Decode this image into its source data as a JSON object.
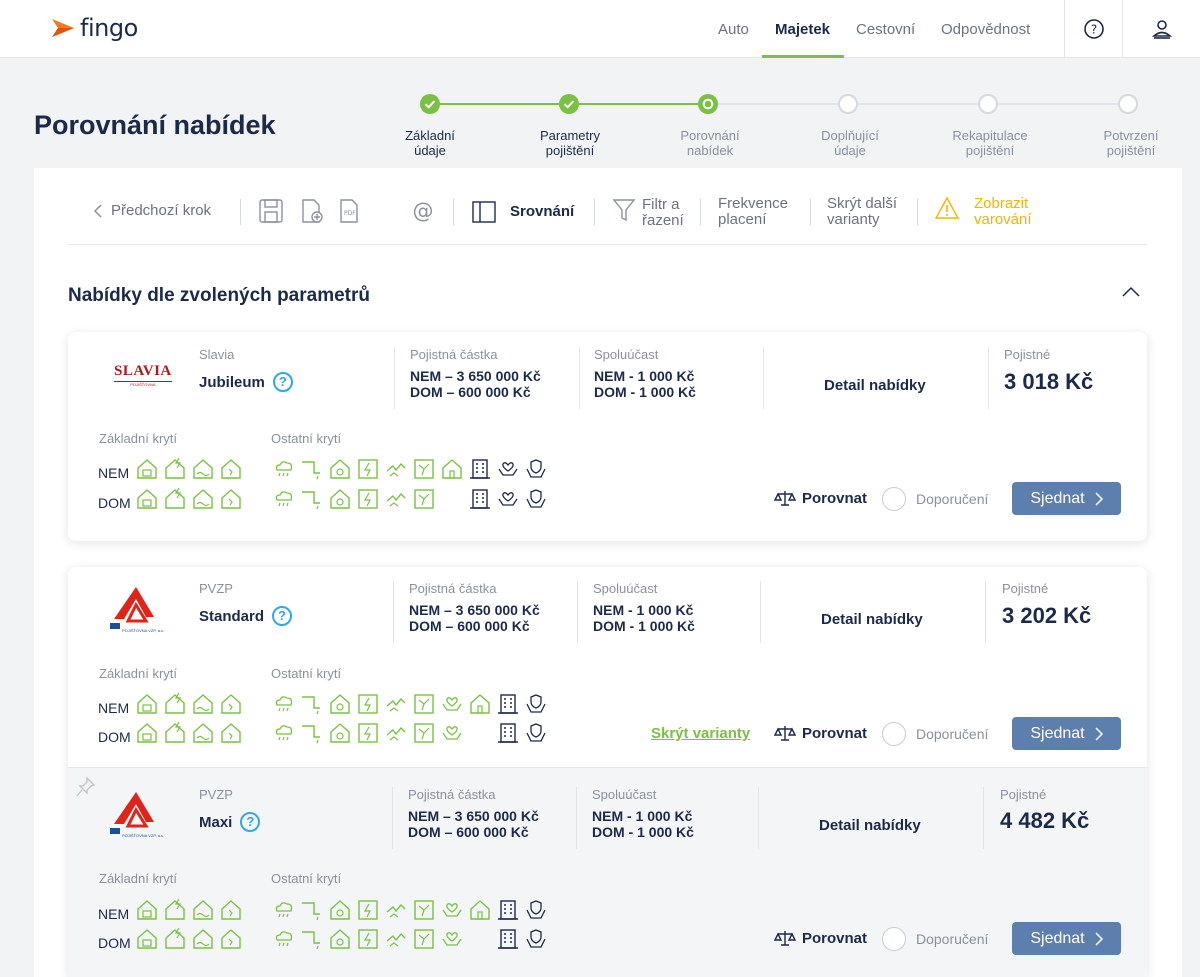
{
  "header": {
    "logo": "fingo",
    "nav": [
      "Auto",
      "Majetek",
      "Cestovní",
      "Odpovědnost"
    ],
    "active_nav": "Majetek"
  },
  "page": {
    "title": "Porovnání nabídek"
  },
  "steps": [
    {
      "label": "Základní údaje",
      "state": "done"
    },
    {
      "label": "Parametry pojištění",
      "state": "done"
    },
    {
      "label": "Porovnání nabídek",
      "state": "current"
    },
    {
      "label": "Doplňující údaje",
      "state": "todo"
    },
    {
      "label": "Rekapitulace pojištění",
      "state": "todo"
    },
    {
      "label": "Potvrzení pojištění",
      "state": "todo"
    }
  ],
  "toolbar": {
    "back": "Předchozí krok",
    "compare": "Srovnání",
    "filter": "Filtr a řazení",
    "frequency": "Frekvence placení",
    "hide_variants": "Skrýt další varianty",
    "warnings": "Zobrazit varování"
  },
  "section_title": "Nabídky dle zvolených parametrů",
  "labels": {
    "sum": "Pojistná částka",
    "deductible": "Spoluúčast",
    "premium": "Pojistné",
    "detail": "Detail nabídky",
    "basic": "Základní krytí",
    "other": "Ostatní krytí",
    "nem": "NEM",
    "dom": "DOM",
    "compare": "Porovnat",
    "recommend": "Doporučení",
    "order": "Sjednat",
    "hide_variants": "Skrýt varianty"
  },
  "offers": [
    {
      "insurer": "Slavia",
      "logo": "SLAVIA",
      "logo_sub": "POJIŠŤOVNA",
      "product": "Jubileum",
      "sum_nem": "NEM – 3 650 000 Kč",
      "sum_dom": "DOM – 600 000 Kč",
      "ded_nem": "NEM - 1 000 Kč",
      "ded_dom": "DOM - 1 000 Kč",
      "price": "3 018 Kč"
    },
    {
      "insurer": "PVZP",
      "logo_sub": "POJIŠŤOVNA VZP, a.s.",
      "product": "Standard",
      "sum_nem": "NEM – 3 650 000 Kč",
      "sum_dom": "DOM – 600 000 Kč",
      "ded_nem": "NEM - 1 000 Kč",
      "ded_dom": "DOM - 1 000 Kč",
      "price": "3 202 Kč"
    },
    {
      "insurer": "PVZP",
      "logo_sub": "POJIŠŤOVNA VZP, a.s.",
      "product": "Maxi",
      "sum_nem": "NEM – 3 650 000 Kč",
      "sum_dom": "DOM – 600 000 Kč",
      "ded_nem": "NEM - 1 000 Kč",
      "ded_dom": "DOM - 1 000 Kč",
      "price": "4 482 Kč"
    }
  ],
  "colors": {
    "accent": "#7ac143",
    "navy": "#1c2a4a",
    "button": "#5d7fae",
    "warning": "#f5b400",
    "info": "#2fa8e6"
  }
}
